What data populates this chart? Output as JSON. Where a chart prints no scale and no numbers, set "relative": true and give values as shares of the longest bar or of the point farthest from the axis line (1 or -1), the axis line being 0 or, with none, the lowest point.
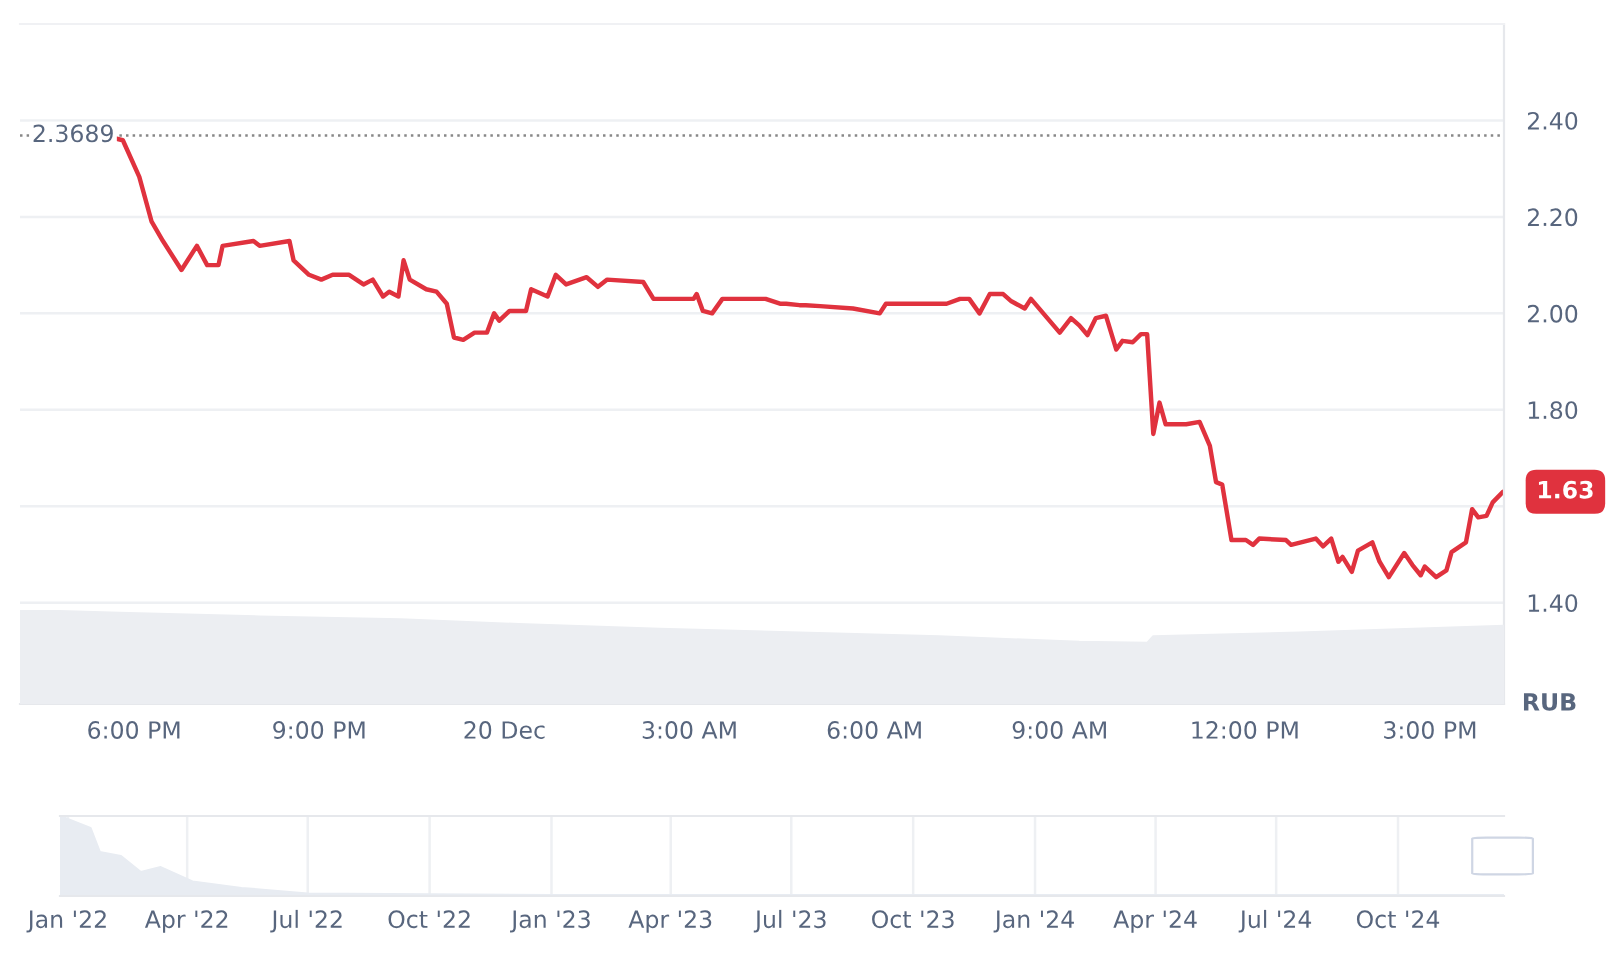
{
  "chart_data": [
    {
      "type": "line",
      "ylabel": "RUB",
      "xlim": [
        "2024-12-19T16:09",
        "2024-12-20T16:12"
      ],
      "ylim": [
        1.19,
        2.6
      ],
      "xticks": [
        {
          "value": "2024-12-19T18:00",
          "label": "6:00 PM"
        },
        {
          "value": "2024-12-19T21:00",
          "label": "9:00 PM"
        },
        {
          "value": "2024-12-20T00:00",
          "label": "20 Dec"
        },
        {
          "value": "2024-12-20T03:00",
          "label": "3:00 AM"
        },
        {
          "value": "2024-12-20T06:00",
          "label": "6:00 AM"
        },
        {
          "value": "2024-12-20T09:00",
          "label": "9:00 AM"
        },
        {
          "value": "2024-12-20T12:00",
          "label": "12:00 PM"
        },
        {
          "value": "2024-12-20T15:00",
          "label": "3:00 PM"
        }
      ],
      "yticks": [
        {
          "value": 1.4,
          "label": "1.40"
        },
        {
          "value": 1.6,
          "label": null
        },
        {
          "value": 1.8,
          "label": "1.80"
        },
        {
          "value": 2.0,
          "label": "2.00"
        },
        {
          "value": 2.2,
          "label": "2.20"
        },
        {
          "value": 2.4,
          "label": "2.40"
        }
      ],
      "grid": "y",
      "marker": "none",
      "line_style": "solid",
      "ref_lines": [
        {
          "axis": "y",
          "value": 2.3689,
          "label": "2.3689",
          "color": "#888888",
          "line_style": "dotted"
        }
      ],
      "annotations": [
        {
          "text": "1.63",
          "x": "2024-12-20T16:11",
          "y": 1.63
        }
      ],
      "series": [
        {
          "color": "#e0323e",
          "x": [
            "2024-12-19T17:43",
            "2024-12-19T17:49",
            "2024-12-19T18:05",
            "2024-12-19T18:17",
            "2024-12-19T18:28",
            "2024-12-19T18:46",
            "2024-12-19T19:01",
            "2024-12-19T19:11",
            "2024-12-19T19:22",
            "2024-12-19T19:26",
            "2024-12-19T19:56",
            "2024-12-19T20:02",
            "2024-12-19T20:31",
            "2024-12-19T20:35",
            "2024-12-19T20:50",
            "2024-12-19T21:02",
            "2024-12-19T21:13",
            "2024-12-19T21:29",
            "2024-12-19T21:43",
            "2024-12-19T21:52",
            "2024-12-19T22:02",
            "2024-12-19T22:08",
            "2024-12-19T22:17",
            "2024-12-19T22:22",
            "2024-12-19T22:28",
            "2024-12-19T22:44",
            "2024-12-19T22:54",
            "2024-12-19T23:04",
            "2024-12-19T23:11",
            "2024-12-19T23:20",
            "2024-12-19T23:31",
            "2024-12-19T23:43",
            "2024-12-19T23:50",
            "2024-12-19T23:55",
            "2024-12-20T00:05",
            "2024-12-20T00:21",
            "2024-12-20T00:26",
            "2024-12-20T00:42",
            "2024-12-20T00:50",
            "2024-12-20T01:00",
            "2024-12-20T01:20",
            "2024-12-20T01:31",
            "2024-12-20T01:40",
            "2024-12-20T02:15",
            "2024-12-20T02:25",
            "2024-12-20T03:04",
            "2024-12-20T03:07",
            "2024-12-20T03:13",
            "2024-12-20T03:22",
            "2024-12-20T03:32",
            "2024-12-20T04:14",
            "2024-12-20T04:28",
            "2024-12-20T04:34",
            "2024-12-20T04:47",
            "2024-12-20T04:53",
            "2024-12-20T05:07",
            "2024-12-20T05:39",
            "2024-12-20T06:05",
            "2024-12-20T06:11",
            "2024-12-20T07:10",
            "2024-12-20T07:23",
            "2024-12-20T07:32",
            "2024-12-20T07:42",
            "2024-12-20T07:52",
            "2024-12-20T08:05",
            "2024-12-20T08:13",
            "2024-12-20T08:26",
            "2024-12-20T08:32",
            "2024-12-20T09:00",
            "2024-12-20T09:11",
            "2024-12-20T09:19",
            "2024-12-20T09:27",
            "2024-12-20T09:35",
            "2024-12-20T09:45",
            "2024-12-20T09:55",
            "2024-12-20T10:01",
            "2024-12-20T10:11",
            "2024-12-20T10:19",
            "2024-12-20T10:25",
            "2024-12-20T10:31",
            "2024-12-20T10:37",
            "2024-12-20T10:43",
            "2024-12-20T11:03",
            "2024-12-20T11:16",
            "2024-12-20T11:26",
            "2024-12-20T11:32",
            "2024-12-20T11:38",
            "2024-12-20T11:47",
            "2024-12-20T12:01",
            "2024-12-20T12:08",
            "2024-12-20T12:14",
            "2024-12-20T12:40",
            "2024-12-20T12:45",
            "2024-12-20T13:09",
            "2024-12-20T13:16",
            "2024-12-20T13:24",
            "2024-12-20T13:31",
            "2024-12-20T13:35",
            "2024-12-20T13:44",
            "2024-12-20T13:50",
            "2024-12-20T14:04",
            "2024-12-20T14:11",
            "2024-12-20T14:20",
            "2024-12-20T14:35",
            "2024-12-20T14:43",
            "2024-12-20T14:51",
            "2024-12-20T14:55",
            "2024-12-20T15:06",
            "2024-12-20T15:16",
            "2024-12-20T15:21",
            "2024-12-20T15:35",
            "2024-12-20T15:41",
            "2024-12-20T15:47",
            "2024-12-20T15:55",
            "2024-12-20T16:01",
            "2024-12-20T16:11"
          ],
          "values": [
            2.362,
            2.359,
            2.283,
            2.19,
            2.15,
            2.09,
            2.14,
            2.1,
            2.1,
            2.14,
            2.15,
            2.14,
            2.15,
            2.11,
            2.08,
            2.07,
            2.08,
            2.08,
            2.06,
            2.07,
            2.035,
            2.045,
            2.035,
            2.11,
            2.07,
            2.05,
            2.045,
            2.02,
            1.95,
            1.945,
            1.96,
            1.96,
            2.0,
            1.985,
            2.005,
            2.005,
            2.05,
            2.035,
            2.08,
            2.06,
            2.075,
            2.055,
            2.07,
            2.065,
            2.03,
            2.03,
            2.04,
            2.005,
            2.0,
            2.03,
            2.03,
            2.02,
            2.02,
            2.017,
            2.017,
            2.015,
            2.01,
            2.0,
            2.02,
            2.02,
            2.03,
            2.03,
            2.0,
            2.04,
            2.04,
            2.025,
            2.01,
            2.03,
            1.96,
            1.99,
            1.975,
            1.955,
            1.99,
            1.995,
            1.925,
            1.943,
            1.94,
            1.957,
            1.957,
            1.75,
            1.815,
            1.77,
            1.77,
            1.775,
            1.725,
            1.65,
            1.645,
            1.53,
            1.53,
            1.52,
            1.533,
            1.53,
            1.52,
            1.533,
            1.517,
            1.533,
            1.485,
            1.495,
            1.464,
            1.508,
            1.525,
            1.485,
            1.453,
            1.503,
            1.478,
            1.457,
            1.475,
            1.453,
            1.467,
            1.505,
            1.525,
            1.594,
            1.577,
            1.58,
            1.608,
            1.63
          ]
        }
      ]
    },
    {
      "type": "area",
      "relative": true,
      "tick_labels": false,
      "xlim": [
        "2024-12-19T16:09",
        "2024-12-20T16:12"
      ],
      "series": [
        {
          "color": "#eceef2",
          "x": [
            "2024-12-19T16:09",
            "2024-12-19T17:46",
            "2024-12-19T20:02",
            "2024-12-19T22:19",
            "2024-12-20T00:14",
            "2024-12-20T02:31",
            "2024-12-20T04:47",
            "2024-12-20T07:03",
            "2024-12-20T09:19",
            "2024-12-20T10:25",
            "2024-12-20T10:31",
            "2024-12-20T12:53",
            "2024-12-20T16:12"
          ],
          "values": [
            1.0,
            0.97,
            0.93,
            0.9,
            0.85,
            0.8,
            0.76,
            0.72,
            0.66,
            0.65,
            0.72,
            0.76,
            0.83
          ]
        }
      ]
    },
    {
      "type": "area",
      "relative": true,
      "tick_labels": "x",
      "grid": "x",
      "xlim": [
        "2021-12-26",
        "2024-12-20"
      ],
      "xticks": [
        {
          "value": "2022-01-01",
          "label": "Jan '22"
        },
        {
          "value": "2022-04-01",
          "label": "Apr '22"
        },
        {
          "value": "2022-07-01",
          "label": "Jul '22"
        },
        {
          "value": "2022-10-01",
          "label": "Oct '22"
        },
        {
          "value": "2023-01-01",
          "label": "Jan '23"
        },
        {
          "value": "2023-04-01",
          "label": "Apr '23"
        },
        {
          "value": "2023-07-01",
          "label": "Jul '23"
        },
        {
          "value": "2023-10-01",
          "label": "Oct '23"
        },
        {
          "value": "2024-01-01",
          "label": "Jan '24"
        },
        {
          "value": "2024-04-01",
          "label": "Apr '24"
        },
        {
          "value": "2024-07-01",
          "label": "Jul '24"
        },
        {
          "value": "2024-10-01",
          "label": "Oct '24"
        }
      ],
      "series": [
        {
          "color": "#e8ecf2",
          "x": [
            "2021-12-26",
            "2022-01-18",
            "2022-01-25",
            "2022-02-10",
            "2022-02-25",
            "2022-03-12",
            "2022-04-05",
            "2022-05-12",
            "2022-07-01",
            "2023-01-01",
            "2024-01-01",
            "2024-12-20"
          ],
          "values": [
            1.0,
            0.85,
            0.55,
            0.5,
            0.3,
            0.36,
            0.18,
            0.1,
            0.03,
            0.01,
            0.01,
            0.01
          ]
        }
      ]
    }
  ]
}
